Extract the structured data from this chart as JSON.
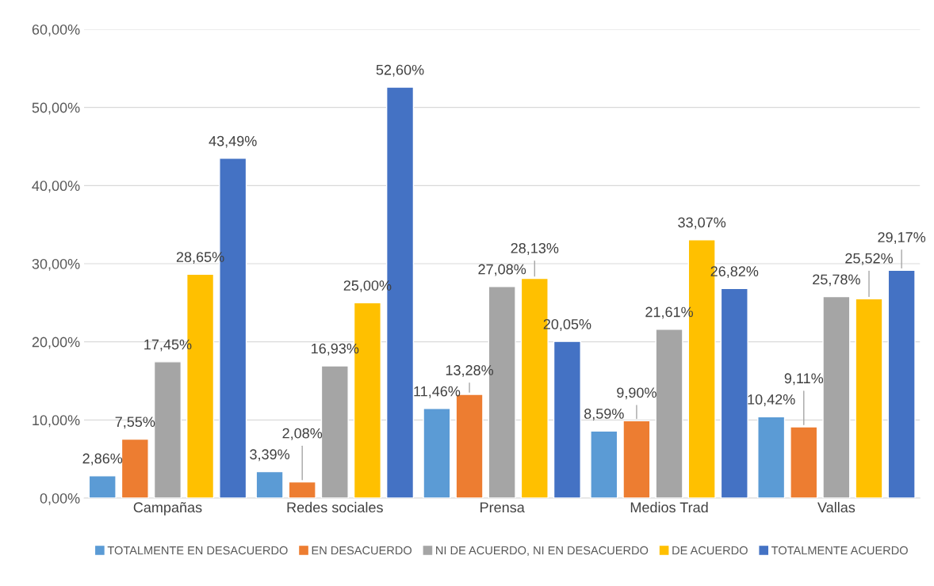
{
  "chart_data": {
    "type": "bar",
    "categories": [
      "Campañas",
      "Redes sociales",
      "Prensa",
      "Medios Trad",
      "Vallas"
    ],
    "series": [
      {
        "name": "TOTALMENTE EN DESACUERDO",
        "color": "#5b9bd5",
        "values": [
          2.86,
          3.39,
          11.46,
          8.59,
          10.42
        ],
        "value_labels": [
          "2,86%",
          "3,39%",
          "11,46%",
          "8,59%",
          "10,42%"
        ]
      },
      {
        "name": "EN DESACUERDO",
        "color": "#ed7d31",
        "values": [
          7.55,
          2.08,
          13.28,
          9.9,
          9.11
        ],
        "value_labels": [
          "7,55%",
          "2,08%",
          "13,28%",
          "9,90%",
          "9,11%"
        ]
      },
      {
        "name": "NI DE ACUERDO, NI EN DESACUERDO",
        "color": "#a5a5a5",
        "values": [
          17.45,
          16.93,
          27.08,
          21.61,
          25.78
        ],
        "value_labels": [
          "17,45%",
          "16,93%",
          "27,08%",
          "21,61%",
          "25,78%"
        ]
      },
      {
        "name": "DE ACUERDO",
        "color": "#ffc000",
        "values": [
          28.65,
          25.0,
          28.13,
          33.07,
          25.52
        ],
        "value_labels": [
          "28,65%",
          "25,00%",
          "28,13%",
          "33,07%",
          "25,52%"
        ]
      },
      {
        "name": "TOTALMENTE ACUERDO",
        "color": "#4472c4",
        "values": [
          43.49,
          52.6,
          20.05,
          26.82,
          29.17
        ],
        "value_labels": [
          "43,49%",
          "52,60%",
          "20,05%",
          "26,82%",
          "29,17%"
        ]
      }
    ],
    "ylim": [
      0,
      60
    ],
    "yticks": [
      {
        "value": 0,
        "label": "0,00%"
      },
      {
        "value": 10,
        "label": "10,00%"
      },
      {
        "value": 20,
        "label": "20,00%"
      },
      {
        "value": 30,
        "label": "30,00%"
      },
      {
        "value": 40,
        "label": "40,00%"
      },
      {
        "value": 50,
        "label": "50,00%"
      },
      {
        "value": 60,
        "label": "60,00%"
      }
    ],
    "grid": "y",
    "legend": "bottom"
  }
}
